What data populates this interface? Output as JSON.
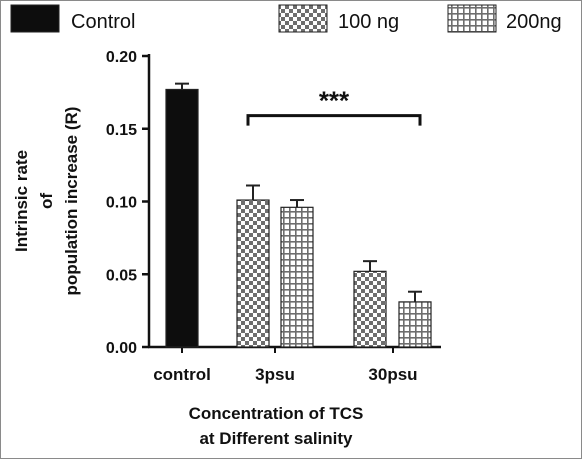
{
  "chart_data": {
    "type": "bar",
    "categories": [
      "control",
      "3psu",
      "30psu"
    ],
    "series": [
      {
        "name": "Control",
        "values": [
          0.177,
          null,
          null
        ],
        "errors": [
          0.004,
          null,
          null
        ],
        "fill": "solid",
        "color": "#0d0d0d"
      },
      {
        "name": "100 ng",
        "values": [
          null,
          0.101,
          0.052
        ],
        "errors": [
          null,
          0.01,
          0.007
        ],
        "fill": "checker",
        "color": "#6e6e6e"
      },
      {
        "name": "200ng",
        "values": [
          null,
          0.096,
          0.031
        ],
        "errors": [
          null,
          0.005,
          0.007
        ],
        "fill": "grid",
        "color": "#6e6e6e"
      }
    ],
    "ylabel_lines": [
      "Intrinsic rate",
      "of",
      "population increase (R)"
    ],
    "xlabel_lines": [
      "Concentration of TCS",
      "at Different salinity"
    ],
    "ylim": [
      0,
      0.2
    ],
    "yticks": [
      0,
      0.05,
      0.1,
      0.15,
      0.2
    ],
    "ytick_labels": [
      "0.00",
      "0.05",
      "0.10",
      "0.15",
      "0.20"
    ],
    "grid": false,
    "legend_position": "top",
    "annotations": [
      {
        "text": "***",
        "from_category": "3psu",
        "to_category": "30psu",
        "y": 0.159
      }
    ]
  }
}
